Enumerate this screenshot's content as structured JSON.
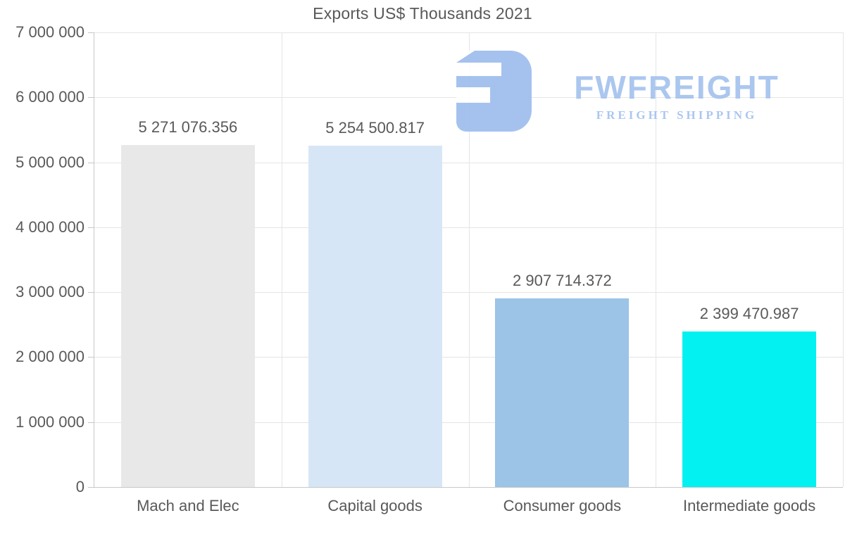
{
  "page": {
    "background": "#ffffff"
  },
  "watermark": {
    "brand": "FWFREIGHT",
    "tagline": "FREIGHT SHIPPING",
    "icon": "fwfreight-logo-icon",
    "color": "#a3c1ee"
  },
  "colors": {
    "text": "#595959",
    "grid": "#e5e5e5",
    "axis": "#c8c8c8",
    "background": "#ffffff"
  },
  "chart_data": {
    "type": "bar",
    "title": "Exports US$ Thousands 2021",
    "categories": [
      "Mach and Elec",
      "Capital goods",
      "Consumer goods",
      "Intermediate goods"
    ],
    "values": [
      5271076.356,
      5254500.817,
      2907714.372,
      2399470.987
    ],
    "value_labels": [
      "5 271 076.356",
      "5 254 500.817",
      "2 907 714.372",
      "2 399 470.987"
    ],
    "bar_colors": [
      "#e8e8e8",
      "#d7e6f7",
      "#9bc4e7",
      "#04f1f1"
    ],
    "xlabel": "",
    "ylabel": "",
    "ylim": [
      0,
      7000000
    ],
    "yticks": [
      0,
      1000000,
      2000000,
      3000000,
      4000000,
      5000000,
      6000000,
      7000000
    ],
    "ytick_labels": [
      "0",
      "1 000 000",
      "2 000 000",
      "3 000 000",
      "4 000 000",
      "5 000 000",
      "6 000 000",
      "7 000 000"
    ],
    "grid": true,
    "legend": false
  }
}
